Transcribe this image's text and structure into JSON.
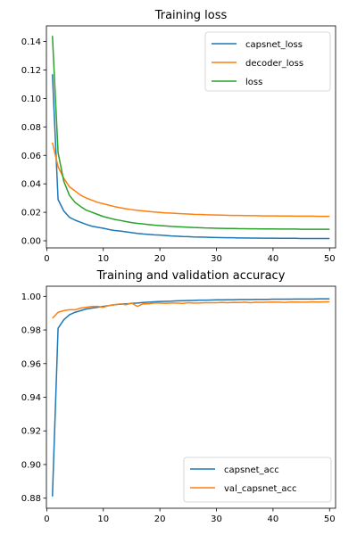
{
  "chart_data": [
    {
      "type": "line",
      "title": "Training loss",
      "xlabel": "",
      "ylabel": "",
      "xlim": [
        1,
        50
      ],
      "ylim": [
        -0.005,
        0.151
      ],
      "xticks": [
        0,
        10,
        20,
        30,
        40,
        50
      ],
      "yticks": [
        0.0,
        0.02,
        0.04,
        0.06,
        0.08,
        0.1,
        0.12,
        0.14
      ],
      "ytick_labels": [
        "0.00",
        "0.02",
        "0.04",
        "0.06",
        "0.08",
        "0.10",
        "0.12",
        "0.14"
      ],
      "grid": false,
      "legend_position": "top-right",
      "x": [
        1,
        2,
        3,
        4,
        5,
        6,
        7,
        8,
        9,
        10,
        11,
        12,
        13,
        14,
        15,
        16,
        17,
        18,
        19,
        20,
        21,
        22,
        23,
        24,
        25,
        26,
        27,
        28,
        29,
        30,
        31,
        32,
        33,
        34,
        35,
        36,
        37,
        38,
        39,
        40,
        41,
        42,
        43,
        44,
        45,
        46,
        47,
        48,
        49,
        50
      ],
      "series": [
        {
          "name": "capsnet_loss",
          "color": "#1f77b4",
          "values": [
            0.117,
            0.029,
            0.021,
            0.0165,
            0.0145,
            0.013,
            0.0115,
            0.0102,
            0.0095,
            0.0088,
            0.0079,
            0.0072,
            0.0068,
            0.0063,
            0.0057,
            0.0052,
            0.0048,
            0.0045,
            0.0042,
            0.004,
            0.0037,
            0.0034,
            0.0032,
            0.003,
            0.0029,
            0.0027,
            0.0026,
            0.0025,
            0.0024,
            0.0023,
            0.0022,
            0.0021,
            0.0021,
            0.002,
            0.002,
            0.0019,
            0.0019,
            0.0018,
            0.0018,
            0.0018,
            0.0017,
            0.0017,
            0.0017,
            0.0017,
            0.0016,
            0.0016,
            0.0016,
            0.0016,
            0.0016,
            0.0016
          ]
        },
        {
          "name": "decoder_loss",
          "color": "#ff7f0e",
          "values": [
            0.069,
            0.052,
            0.044,
            0.038,
            0.035,
            0.032,
            0.03,
            0.0285,
            0.027,
            0.026,
            0.025,
            0.024,
            0.0232,
            0.0225,
            0.0219,
            0.0214,
            0.021,
            0.0206,
            0.0202,
            0.0199,
            0.0196,
            0.0194,
            0.0192,
            0.019,
            0.0188,
            0.0186,
            0.0185,
            0.0183,
            0.0182,
            0.0181,
            0.018,
            0.0179,
            0.0178,
            0.0178,
            0.0177,
            0.0176,
            0.0176,
            0.0175,
            0.0175,
            0.0175,
            0.0174,
            0.0174,
            0.0174,
            0.0173,
            0.0173,
            0.0173,
            0.0173,
            0.0172,
            0.0172,
            0.0172
          ]
        },
        {
          "name": "loss",
          "color": "#2ca02c",
          "values": [
            0.144,
            0.062,
            0.042,
            0.032,
            0.027,
            0.024,
            0.0215,
            0.02,
            0.0185,
            0.017,
            0.016,
            0.015,
            0.0143,
            0.0135,
            0.0128,
            0.0122,
            0.0118,
            0.0114,
            0.011,
            0.0107,
            0.0104,
            0.0101,
            0.0099,
            0.0097,
            0.0095,
            0.0093,
            0.0092,
            0.009,
            0.0089,
            0.0088,
            0.0087,
            0.0086,
            0.0086,
            0.0085,
            0.0085,
            0.0084,
            0.0084,
            0.0083,
            0.0083,
            0.0083,
            0.0082,
            0.0082,
            0.0082,
            0.0082,
            0.0081,
            0.0081,
            0.0081,
            0.0081,
            0.0081,
            0.0081
          ]
        }
      ]
    },
    {
      "type": "line",
      "title": "Training and validation accuracy",
      "xlabel": "",
      "ylabel": "",
      "xlim": [
        1,
        50
      ],
      "ylim": [
        0.874,
        1.006
      ],
      "xticks": [
        0,
        10,
        20,
        30,
        40,
        50
      ],
      "yticks": [
        0.88,
        0.9,
        0.92,
        0.94,
        0.96,
        0.98,
        1.0
      ],
      "ytick_labels": [
        "0.88",
        "0.90",
        "0.92",
        "0.94",
        "0.96",
        "0.98",
        "1.00"
      ],
      "grid": false,
      "legend_position": "lower-right",
      "x": [
        1,
        2,
        3,
        4,
        5,
        6,
        7,
        8,
        9,
        10,
        11,
        12,
        13,
        14,
        15,
        16,
        17,
        18,
        19,
        20,
        21,
        22,
        23,
        24,
        25,
        26,
        27,
        28,
        29,
        30,
        31,
        32,
        33,
        34,
        35,
        36,
        37,
        38,
        39,
        40,
        41,
        42,
        43,
        44,
        45,
        46,
        47,
        48,
        49,
        50
      ],
      "series": [
        {
          "name": "capsnet_acc",
          "color": "#1f77b4",
          "values": [
            0.881,
            0.981,
            0.986,
            0.989,
            0.9905,
            0.9915,
            0.9925,
            0.993,
            0.9935,
            0.994,
            0.9945,
            0.995,
            0.9953,
            0.9955,
            0.9958,
            0.996,
            0.9963,
            0.9965,
            0.9967,
            0.9969,
            0.997,
            0.9971,
            0.9973,
            0.9974,
            0.9975,
            0.9976,
            0.9977,
            0.9977,
            0.9978,
            0.9979,
            0.9979,
            0.998,
            0.998,
            0.9981,
            0.9981,
            0.9981,
            0.9982,
            0.9982,
            0.9982,
            0.9983,
            0.9983,
            0.9983,
            0.9983,
            0.9984,
            0.9984,
            0.9984,
            0.9984,
            0.9985,
            0.9985,
            0.9985
          ]
        },
        {
          "name": "val_capsnet_acc",
          "color": "#ff7f0e",
          "values": [
            0.987,
            0.9905,
            0.9915,
            0.992,
            0.992,
            0.993,
            0.9935,
            0.994,
            0.994,
            0.9935,
            0.9945,
            0.995,
            0.9955,
            0.995,
            0.996,
            0.994,
            0.9955,
            0.9955,
            0.996,
            0.996,
            0.9958,
            0.996,
            0.996,
            0.9958,
            0.9962,
            0.996,
            0.996,
            0.9962,
            0.9962,
            0.9962,
            0.9964,
            0.9962,
            0.9964,
            0.9963,
            0.9965,
            0.9962,
            0.9965,
            0.9964,
            0.9965,
            0.9966,
            0.9965,
            0.9964,
            0.9966,
            0.9966,
            0.9965,
            0.9965,
            0.9967,
            0.9966,
            0.9967,
            0.9967
          ]
        }
      ]
    }
  ]
}
